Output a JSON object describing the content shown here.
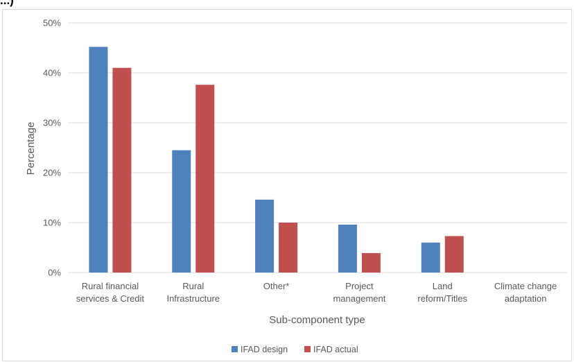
{
  "top_fragment": "...)",
  "chart_data": {
    "type": "bar",
    "title": "",
    "xlabel": "Sub-component type",
    "ylabel": "Percentage",
    "categories": [
      [
        "Rural financial",
        "services & Credit"
      ],
      [
        "Rural",
        "Infrastructure"
      ],
      [
        "Other*"
      ],
      [
        "Project",
        "management"
      ],
      [
        "Land",
        "reform/Titles"
      ],
      [
        "Climate change",
        "adaptation"
      ]
    ],
    "series": [
      {
        "name": "IFAD design",
        "color": "#4f81bd",
        "values": [
          45.2,
          24.5,
          14.6,
          9.6,
          6.0,
          0
        ]
      },
      {
        "name": "IFAD actual",
        "color": "#c0504d",
        "values": [
          41.0,
          37.6,
          10.0,
          3.9,
          7.3,
          0
        ]
      }
    ],
    "ylim": [
      0,
      50
    ],
    "yticks": [
      "0%",
      "10%",
      "20%",
      "30%",
      "40%",
      "50%"
    ],
    "ytick_values": [
      0,
      10,
      20,
      30,
      40,
      50
    ],
    "grid": true,
    "legend_position": "bottom",
    "gridline_color": "#d9d9d9"
  }
}
